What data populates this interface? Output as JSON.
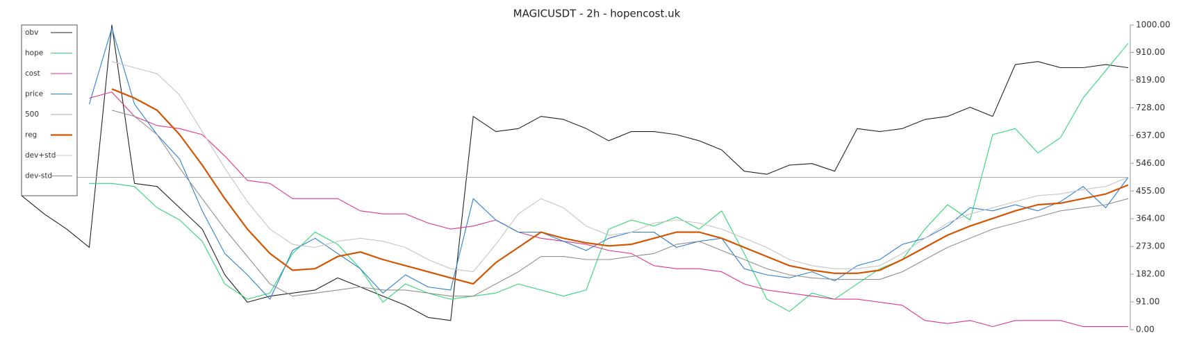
{
  "chart_data": {
    "type": "line",
    "title": "MAGICUSDT - 2h - hopencost.uk",
    "ylim": [
      0,
      1000
    ],
    "yticks": [
      {
        "value": 0,
        "label": "0.00"
      },
      {
        "value": 91,
        "label": "91.00"
      },
      {
        "value": 182,
        "label": "182.00"
      },
      {
        "value": 273,
        "label": "273.00"
      },
      {
        "value": 364,
        "label": "364.00"
      },
      {
        "value": 455,
        "label": "455.00"
      },
      {
        "value": 546,
        "label": "546.00"
      },
      {
        "value": 637,
        "label": "637.00"
      },
      {
        "value": 728,
        "label": "728.00"
      },
      {
        "value": 819,
        "label": "819.00"
      },
      {
        "value": 910,
        "label": "910.00"
      },
      {
        "value": 1000,
        "label": "1000.00"
      }
    ],
    "legend": "upper left",
    "series": [
      {
        "name": "obv",
        "color": "#222222",
        "values": [
          440,
          380,
          330,
          270,
          1000,
          480,
          470,
          400,
          330,
          180,
          90,
          110,
          120,
          130,
          170,
          140,
          110,
          80,
          40,
          30,
          700,
          650,
          660,
          700,
          690,
          660,
          620,
          650,
          650,
          640,
          620,
          590,
          520,
          510,
          540,
          545,
          520,
          660,
          650,
          660,
          690,
          700,
          730,
          700,
          870,
          880,
          860,
          860,
          870,
          860
        ]
      },
      {
        "name": "hope",
        "color": "#2fd873",
        "values": [
          null,
          null,
          null,
          480,
          480,
          470,
          400,
          360,
          290,
          150,
          100,
          120,
          250,
          320,
          280,
          200,
          90,
          150,
          120,
          100,
          110,
          120,
          150,
          130,
          110,
          130,
          330,
          360,
          340,
          370,
          330,
          390,
          250,
          100,
          60,
          120,
          100,
          150,
          200,
          230,
          330,
          410,
          360,
          640,
          660,
          580,
          630,
          760,
          850,
          940
        ]
      },
      {
        "name": "cost",
        "color": "#e0338a",
        "values": [
          null,
          null,
          null,
          760,
          780,
          700,
          670,
          660,
          640,
          570,
          490,
          480,
          430,
          430,
          430,
          390,
          380,
          380,
          350,
          330,
          340,
          360,
          320,
          300,
          290,
          280,
          260,
          250,
          210,
          200,
          200,
          190,
          150,
          130,
          120,
          110,
          100,
          100,
          90,
          80,
          30,
          20,
          30,
          10,
          30,
          30,
          30,
          10,
          10,
          10
        ]
      },
      {
        "name": "price",
        "color": "#2a7fd4",
        "values": [
          null,
          null,
          null,
          740,
          990,
          740,
          640,
          560,
          390,
          250,
          180,
          100,
          260,
          300,
          250,
          200,
          120,
          180,
          140,
          130,
          430,
          360,
          320,
          320,
          290,
          260,
          300,
          320,
          320,
          270,
          290,
          300,
          200,
          180,
          170,
          190,
          160,
          210,
          230,
          280,
          300,
          340,
          400,
          390,
          410,
          390,
          420,
          470,
          400,
          500
        ]
      },
      {
        "name": "500",
        "color": "#aaaaaa",
        "values": [
          500,
          500,
          500,
          500,
          500,
          500,
          500,
          500,
          500,
          500,
          500,
          500,
          500,
          500,
          500,
          500,
          500,
          500,
          500,
          500,
          500,
          500,
          500,
          500,
          500,
          500,
          500,
          500,
          500,
          500,
          500,
          500,
          500,
          500,
          500,
          500,
          500,
          500,
          500,
          500,
          500,
          500,
          500,
          500,
          500,
          500,
          500,
          500,
          500,
          500
        ]
      },
      {
        "name": "reg",
        "color": "#d35400",
        "values": [
          null,
          null,
          null,
          null,
          790,
          760,
          720,
          640,
          540,
          430,
          330,
          250,
          195,
          200,
          240,
          255,
          230,
          210,
          190,
          170,
          150,
          220,
          270,
          320,
          300,
          285,
          275,
          280,
          300,
          320,
          320,
          300,
          270,
          240,
          210,
          195,
          185,
          185,
          195,
          230,
          270,
          310,
          340,
          365,
          390,
          410,
          415,
          430,
          445,
          475
        ]
      },
      {
        "name": "dev+std",
        "color": "#c4c4c4",
        "values": [
          null,
          null,
          null,
          null,
          880,
          860,
          840,
          770,
          650,
          530,
          420,
          330,
          280,
          270,
          290,
          300,
          290,
          270,
          230,
          200,
          190,
          280,
          380,
          430,
          400,
          340,
          310,
          320,
          350,
          360,
          350,
          330,
          300,
          270,
          230,
          210,
          200,
          200,
          210,
          250,
          300,
          350,
          380,
          400,
          420,
          440,
          445,
          460,
          470,
          500
        ]
      },
      {
        "name": "dev-std",
        "color": "#8f8f8f",
        "values": [
          null,
          null,
          null,
          null,
          720,
          700,
          640,
          530,
          430,
          330,
          240,
          150,
          110,
          120,
          130,
          140,
          130,
          130,
          120,
          110,
          110,
          150,
          190,
          240,
          240,
          230,
          230,
          240,
          250,
          280,
          290,
          260,
          230,
          200,
          180,
          170,
          165,
          165,
          165,
          190,
          230,
          270,
          300,
          330,
          350,
          370,
          390,
          400,
          410,
          430
        ]
      }
    ]
  }
}
